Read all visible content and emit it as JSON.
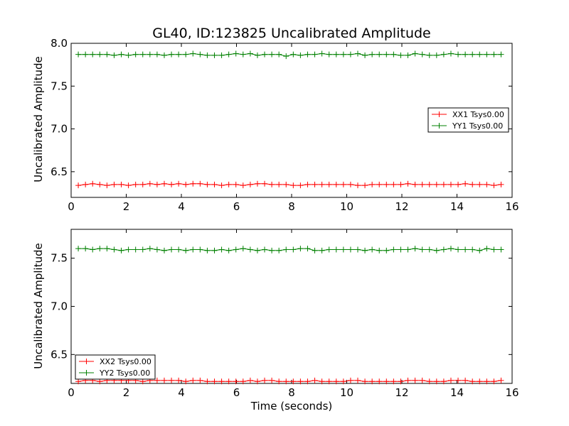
{
  "chart_data": [
    {
      "type": "line",
      "title": "GL40, ID:123825 Uncalibrated Amplitude",
      "xlabel": "",
      "ylabel": "Uncalibrated Amplitude",
      "xlim": [
        0,
        16
      ],
      "ylim": [
        6.2,
        8.0
      ],
      "x_ticks": [
        "0",
        "2",
        "4",
        "6",
        "8",
        "10",
        "12",
        "14",
        "16"
      ],
      "y_ticks": [
        "6.5",
        "7.0",
        "7.5",
        "8.0"
      ],
      "legend_position": "center-right",
      "x": [
        0.26,
        0.52,
        0.78,
        1.04,
        1.3,
        1.56,
        1.82,
        2.08,
        2.34,
        2.6,
        2.86,
        3.12,
        3.38,
        3.64,
        3.9,
        4.16,
        4.42,
        4.68,
        4.94,
        5.2,
        5.46,
        5.72,
        5.98,
        6.24,
        6.5,
        6.76,
        7.02,
        7.28,
        7.54,
        7.8,
        8.06,
        8.32,
        8.58,
        8.84,
        9.1,
        9.36,
        9.62,
        9.88,
        10.14,
        10.4,
        10.66,
        10.92,
        11.18,
        11.44,
        11.7,
        11.96,
        12.22,
        12.48,
        12.74,
        13.0,
        13.26,
        13.52,
        13.78,
        14.04,
        14.3,
        14.56,
        14.82,
        15.08,
        15.34,
        15.6
      ],
      "series": [
        {
          "name": "XX1 Tsys0.00",
          "color": "#ff0000",
          "values": [
            6.34,
            6.35,
            6.36,
            6.35,
            6.34,
            6.35,
            6.35,
            6.34,
            6.35,
            6.35,
            6.36,
            6.35,
            6.36,
            6.35,
            6.36,
            6.35,
            6.36,
            6.36,
            6.35,
            6.35,
            6.34,
            6.35,
            6.35,
            6.34,
            6.35,
            6.36,
            6.36,
            6.35,
            6.35,
            6.35,
            6.34,
            6.34,
            6.35,
            6.35,
            6.35,
            6.35,
            6.35,
            6.35,
            6.35,
            6.34,
            6.34,
            6.35,
            6.35,
            6.35,
            6.35,
            6.35,
            6.36,
            6.35,
            6.35,
            6.35,
            6.35,
            6.35,
            6.35,
            6.35,
            6.36,
            6.35,
            6.35,
            6.35,
            6.34,
            6.35
          ]
        },
        {
          "name": "YY1 Tsys0.00",
          "color": "#008000",
          "values": [
            7.87,
            7.87,
            7.87,
            7.87,
            7.87,
            7.86,
            7.87,
            7.86,
            7.87,
            7.87,
            7.87,
            7.87,
            7.86,
            7.87,
            7.87,
            7.87,
            7.88,
            7.87,
            7.86,
            7.86,
            7.86,
            7.87,
            7.88,
            7.87,
            7.88,
            7.86,
            7.87,
            7.87,
            7.87,
            7.85,
            7.87,
            7.86,
            7.87,
            7.87,
            7.88,
            7.87,
            7.87,
            7.87,
            7.87,
            7.88,
            7.86,
            7.87,
            7.87,
            7.87,
            7.87,
            7.86,
            7.86,
            7.88,
            7.87,
            7.86,
            7.86,
            7.87,
            7.88,
            7.87,
            7.87,
            7.87,
            7.87,
            7.87,
            7.87,
            7.87
          ]
        }
      ]
    },
    {
      "type": "line",
      "title": "",
      "xlabel": "Time (seconds)",
      "ylabel": "Uncalibrated Amplitude",
      "xlim": [
        0,
        16
      ],
      "ylim": [
        6.2,
        7.8
      ],
      "x_ticks": [
        "0",
        "2",
        "4",
        "6",
        "8",
        "10",
        "12",
        "14",
        "16"
      ],
      "y_ticks": [
        "6.5",
        "7.0",
        "7.5"
      ],
      "legend_position": "bottom-left",
      "x": [
        0.26,
        0.52,
        0.78,
        1.04,
        1.3,
        1.56,
        1.82,
        2.08,
        2.34,
        2.6,
        2.86,
        3.12,
        3.38,
        3.64,
        3.9,
        4.16,
        4.42,
        4.68,
        4.94,
        5.2,
        5.46,
        5.72,
        5.98,
        6.24,
        6.5,
        6.76,
        7.02,
        7.28,
        7.54,
        7.8,
        8.06,
        8.32,
        8.58,
        8.84,
        9.1,
        9.36,
        9.62,
        9.88,
        10.14,
        10.4,
        10.66,
        10.92,
        11.18,
        11.44,
        11.7,
        11.96,
        12.22,
        12.48,
        12.74,
        13.0,
        13.26,
        13.52,
        13.78,
        14.04,
        14.3,
        14.56,
        14.82,
        15.08,
        15.34,
        15.6
      ],
      "series": [
        {
          "name": "XX2 Tsys0.00",
          "color": "#ff0000",
          "values": [
            6.22,
            6.23,
            6.23,
            6.22,
            6.23,
            6.23,
            6.23,
            6.23,
            6.23,
            6.22,
            6.23,
            6.23,
            6.23,
            6.23,
            6.23,
            6.22,
            6.23,
            6.23,
            6.22,
            6.22,
            6.22,
            6.22,
            6.22,
            6.22,
            6.23,
            6.22,
            6.23,
            6.23,
            6.22,
            6.22,
            6.22,
            6.22,
            6.22,
            6.23,
            6.22,
            6.22,
            6.22,
            6.22,
            6.23,
            6.23,
            6.22,
            6.22,
            6.22,
            6.22,
            6.22,
            6.22,
            6.23,
            6.23,
            6.23,
            6.22,
            6.22,
            6.22,
            6.23,
            6.23,
            6.23,
            6.22,
            6.22,
            6.22,
            6.22,
            6.23
          ]
        },
        {
          "name": "YY2 Tsys0.00",
          "color": "#008000",
          "values": [
            7.6,
            7.6,
            7.59,
            7.6,
            7.6,
            7.59,
            7.58,
            7.59,
            7.59,
            7.59,
            7.6,
            7.59,
            7.58,
            7.59,
            7.59,
            7.58,
            7.59,
            7.59,
            7.58,
            7.58,
            7.59,
            7.58,
            7.59,
            7.6,
            7.59,
            7.58,
            7.59,
            7.58,
            7.58,
            7.59,
            7.59,
            7.6,
            7.6,
            7.58,
            7.58,
            7.59,
            7.59,
            7.59,
            7.59,
            7.59,
            7.58,
            7.59,
            7.58,
            7.58,
            7.59,
            7.59,
            7.59,
            7.6,
            7.59,
            7.59,
            7.58,
            7.59,
            7.6,
            7.59,
            7.59,
            7.59,
            7.58,
            7.6,
            7.59,
            7.59
          ]
        }
      ]
    }
  ]
}
